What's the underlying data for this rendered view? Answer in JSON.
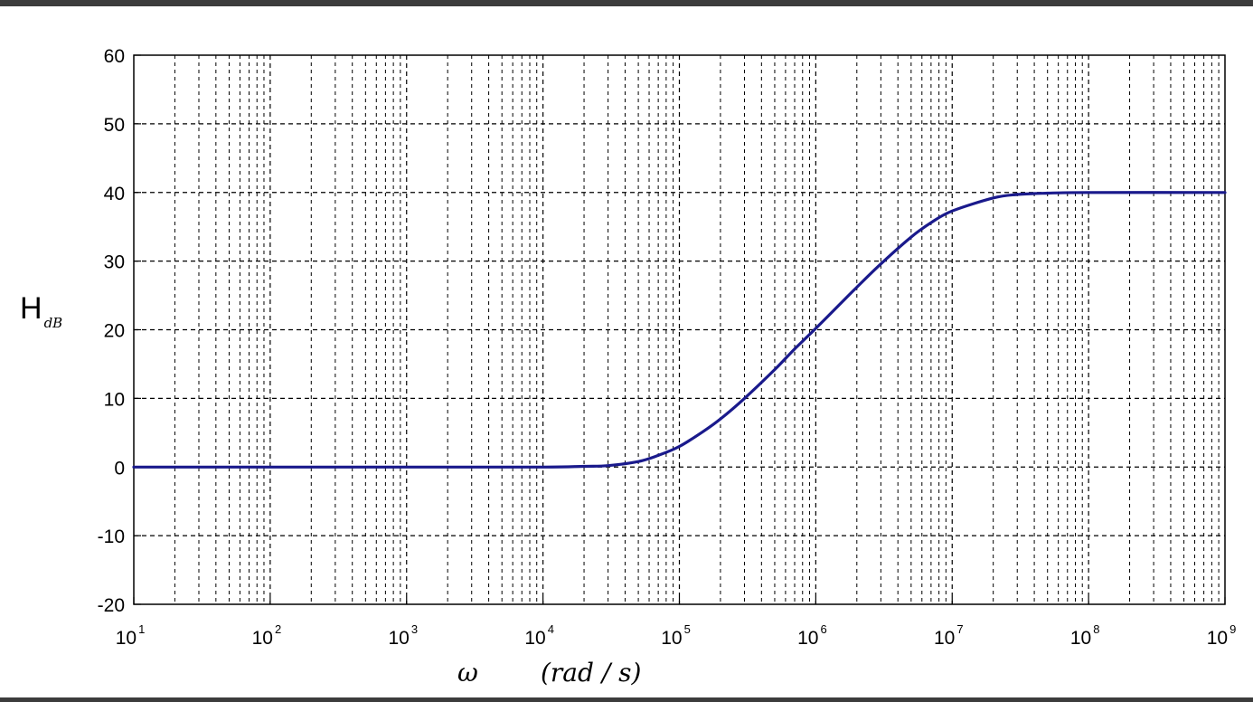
{
  "chart_data": {
    "type": "line",
    "title": "",
    "xlabel": {
      "symbol": "ω",
      "unit": "(rad / s)"
    },
    "ylabel": {
      "main": "H",
      "sub": "dB"
    },
    "x_scale": "log",
    "xlim": [
      10,
      1000000000
    ],
    "ylim": [
      -20,
      60
    ],
    "x_ticks": [
      {
        "base": "10",
        "exp": "1"
      },
      {
        "base": "10",
        "exp": "2"
      },
      {
        "base": "10",
        "exp": "3"
      },
      {
        "base": "10",
        "exp": "4"
      },
      {
        "base": "10",
        "exp": "5"
      },
      {
        "base": "10",
        "exp": "6"
      },
      {
        "base": "10",
        "exp": "7"
      },
      {
        "base": "10",
        "exp": "8"
      },
      {
        "base": "10",
        "exp": "9"
      }
    ],
    "y_ticks": [
      "60",
      "50",
      "40",
      "30",
      "20",
      "10",
      "0",
      "-10",
      "-20"
    ],
    "grid": true,
    "line_color": "#1a1a8c",
    "series": [
      {
        "x": [
          10,
          100,
          1000,
          10000,
          20000,
          30000,
          50000,
          70000,
          100000,
          150000,
          200000,
          300000,
          500000,
          700000,
          1000000,
          1500000,
          2000000,
          3000000,
          5000000,
          7000000,
          10000000,
          20000000,
          30000000,
          50000000,
          100000000,
          1000000000
        ],
        "y": [
          0,
          0,
          0,
          0,
          0.1,
          0.2,
          0.8,
          1.7,
          3.0,
          5.2,
          7.0,
          10.0,
          14.2,
          17.2,
          20.2,
          23.7,
          26.2,
          29.6,
          33.5,
          35.6,
          37.3,
          39.2,
          39.7,
          39.9,
          40,
          40
        ]
      }
    ]
  }
}
